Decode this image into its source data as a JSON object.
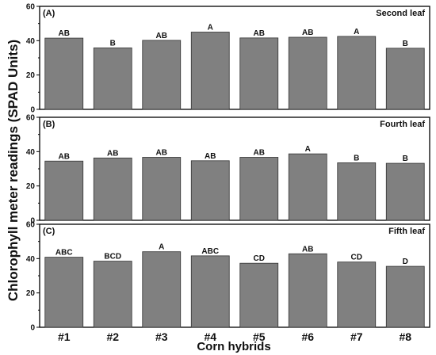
{
  "chart_data": {
    "type": "bar",
    "categories": [
      "#1",
      "#2",
      "#3",
      "#4",
      "#5",
      "#6",
      "#7",
      "#8"
    ],
    "xlabel": "Corn hybrids",
    "ylabel": "Chlorophyll meter readings (SPAD Units)",
    "ylim": [
      0,
      60
    ],
    "yticks": [
      0,
      20,
      40,
      60
    ],
    "bar_color": "#808080",
    "grid": false,
    "panels": [
      {
        "panel_label": "(A)",
        "title": "Second leaf",
        "values": [
          41.5,
          35.8,
          40.2,
          45.0,
          41.6,
          42.0,
          42.5,
          35.6
        ],
        "significance": [
          "AB",
          "B",
          "AB",
          "A",
          "AB",
          "AB",
          "A",
          "B"
        ]
      },
      {
        "panel_label": "(B)",
        "title": "Fourth leaf",
        "values": [
          34.5,
          36.3,
          36.7,
          34.7,
          36.7,
          38.7,
          33.5,
          33.2
        ],
        "significance": [
          "AB",
          "AB",
          "AB",
          "AB",
          "AB",
          "A",
          "B",
          "B"
        ]
      },
      {
        "panel_label": "(C)",
        "title": "Fifth leaf",
        "values": [
          40.8,
          38.5,
          44.0,
          41.6,
          37.3,
          42.8,
          38.0,
          35.5
        ],
        "significance": [
          "ABC",
          "BCD",
          "A",
          "ABC",
          "CD",
          "AB",
          "CD",
          "D"
        ]
      }
    ]
  }
}
